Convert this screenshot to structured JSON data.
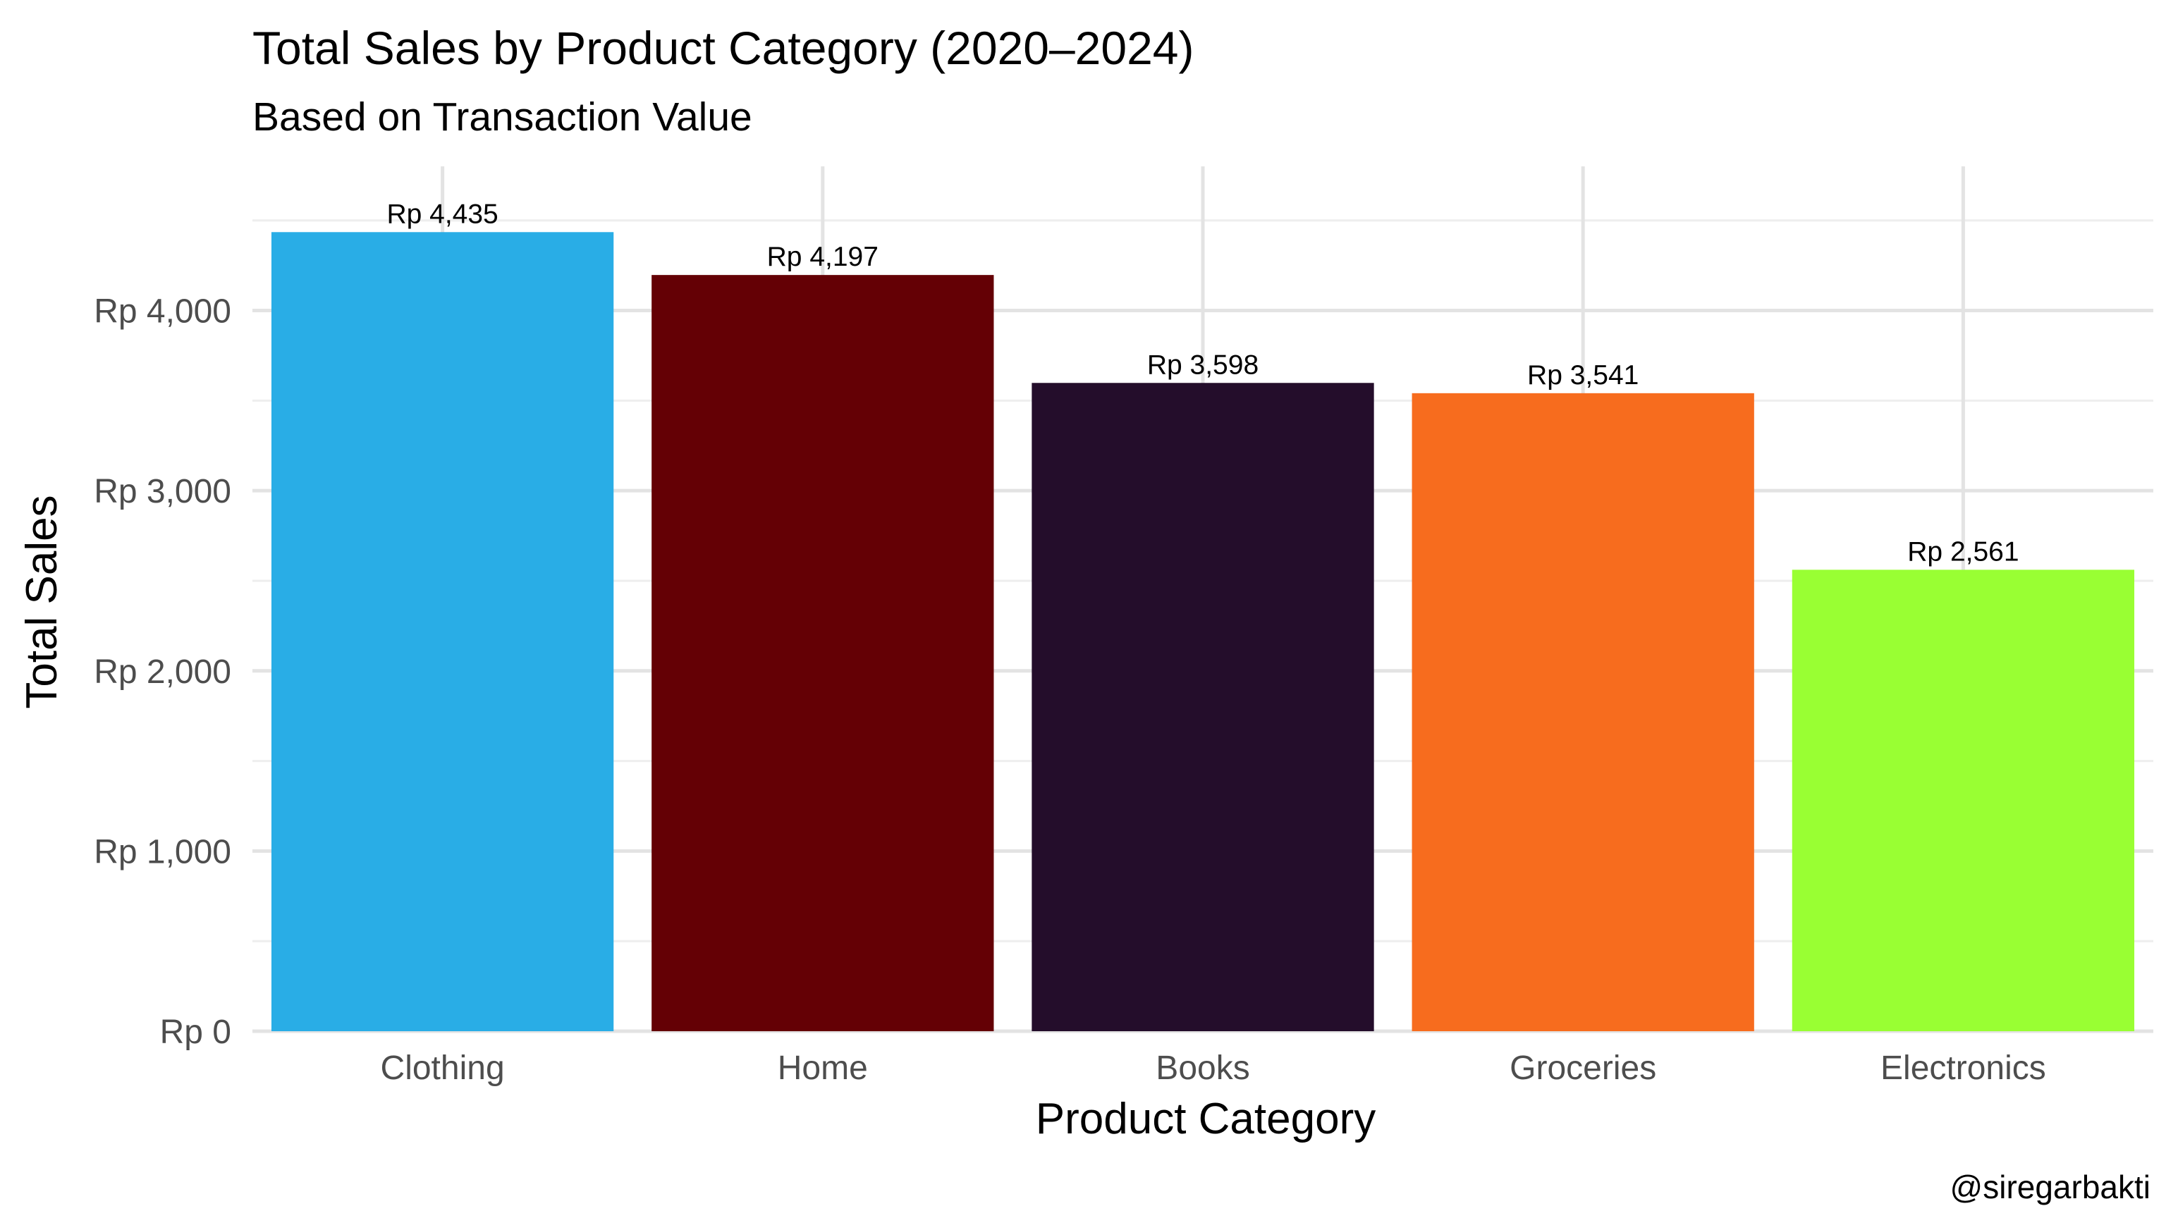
{
  "chart_data": {
    "type": "bar",
    "title": "Total Sales by Product Category (2020–2024)",
    "subtitle": "Based on Transaction Value",
    "xlabel": "Product Category",
    "ylabel": "Total Sales",
    "caption": "@siregarbakti",
    "categories": [
      "Clothing",
      "Home",
      "Books",
      "Groceries",
      "Electronics"
    ],
    "values": [
      4435,
      4197,
      3598,
      3541,
      2561
    ],
    "data_labels": [
      "Rp 4,435",
      "Rp 4,197",
      "Rp 3,598",
      "Rp 3,541",
      "Rp 2,561"
    ],
    "colors": [
      "#29ade6",
      "#640005",
      "#240d2b",
      "#f76c1e",
      "#99ff33"
    ],
    "ylim": [
      0,
      4800
    ],
    "y_ticks": [
      0,
      1000,
      2000,
      3000,
      4000
    ],
    "y_tick_labels": [
      "Rp 0",
      "Rp 1,000",
      "Rp 2,000",
      "Rp 3,000",
      "Rp 4,000"
    ],
    "grid": true,
    "legend": "none"
  }
}
